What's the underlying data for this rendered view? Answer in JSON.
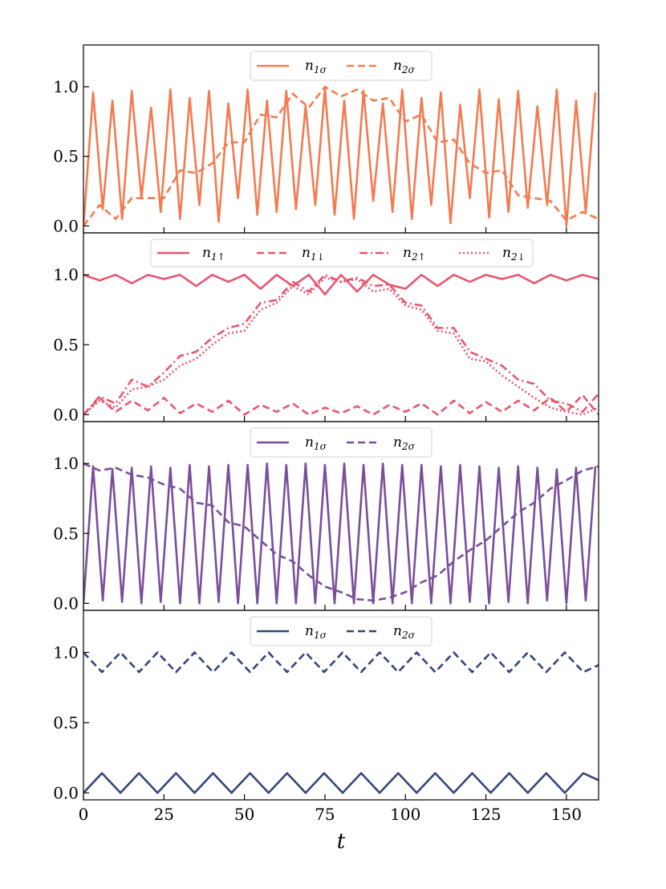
{
  "chart_data": [
    {
      "type": "line",
      "xlabel": "",
      "ylabel": "",
      "xlim": [
        0,
        160
      ],
      "ylim": [
        -0.05,
        1.3
      ],
      "xticks": [
        0,
        25,
        50,
        75,
        100,
        125,
        150
      ],
      "yticks": [
        "0.0",
        "0.5",
        "1.0"
      ],
      "legend_position": "top-center",
      "series": [
        {
          "name": "n1σ",
          "label_base": "n",
          "label_sub": "1σ",
          "color": "#f47a4f",
          "dash": "solid",
          "x": [
            0,
            3,
            6,
            9,
            12,
            15,
            18,
            21,
            24,
            27,
            30,
            33,
            36,
            39,
            42,
            45,
            48,
            51,
            54,
            57,
            60,
            63,
            66,
            69,
            72,
            75,
            78,
            81,
            84,
            87,
            90,
            93,
            96,
            99,
            102,
            105,
            108,
            111,
            114,
            117,
            120,
            123,
            126,
            129,
            132,
            135,
            138,
            141,
            144,
            147,
            150,
            153,
            156,
            159
          ],
          "y": [
            0.0,
            0.96,
            0.12,
            0.9,
            0.05,
            0.97,
            0.2,
            0.85,
            0.1,
            0.98,
            0.05,
            0.92,
            0.15,
            0.97,
            0.03,
            0.88,
            0.2,
            0.98,
            0.08,
            0.9,
            0.1,
            0.97,
            0.12,
            0.86,
            0.15,
            0.99,
            0.08,
            0.9,
            0.05,
            0.97,
            0.18,
            0.88,
            0.1,
            0.98,
            0.05,
            0.92,
            0.15,
            0.96,
            0.02,
            0.87,
            0.2,
            0.98,
            0.06,
            0.91,
            0.1,
            0.97,
            0.13,
            0.86,
            0.15,
            0.98,
            0.0,
            0.9,
            0.1,
            0.96
          ]
        },
        {
          "name": "n2σ",
          "label_base": "n",
          "label_sub": "2σ",
          "color": "#f47a4f",
          "dash": "dashed",
          "x": [
            0,
            5,
            10,
            15,
            20,
            25,
            30,
            35,
            40,
            45,
            50,
            55,
            60,
            65,
            70,
            75,
            80,
            85,
            90,
            95,
            100,
            105,
            110,
            115,
            120,
            125,
            130,
            135,
            140,
            145,
            150,
            155,
            160
          ],
          "y": [
            0.0,
            0.15,
            0.05,
            0.2,
            0.2,
            0.2,
            0.4,
            0.38,
            0.45,
            0.6,
            0.6,
            0.8,
            0.78,
            0.95,
            0.85,
            1.0,
            0.93,
            0.98,
            0.9,
            0.92,
            0.75,
            0.8,
            0.6,
            0.62,
            0.45,
            0.38,
            0.4,
            0.22,
            0.2,
            0.18,
            0.04,
            0.1,
            0.05
          ]
        }
      ]
    },
    {
      "type": "line",
      "xlabel": "",
      "ylabel": "",
      "xlim": [
        0,
        160
      ],
      "ylim": [
        -0.05,
        1.3
      ],
      "xticks": [
        0,
        25,
        50,
        75,
        100,
        125,
        150
      ],
      "yticks": [
        "0.0",
        "0.5",
        "1.0"
      ],
      "legend_position": "top-center",
      "series": [
        {
          "name": "n1↑",
          "label_base": "n",
          "label_sub": "1↑",
          "color": "#e8566f",
          "dash": "solid",
          "x": [
            0,
            5,
            10,
            15,
            20,
            25,
            30,
            35,
            40,
            45,
            50,
            55,
            60,
            65,
            70,
            75,
            80,
            85,
            90,
            95,
            100,
            105,
            110,
            115,
            120,
            125,
            130,
            135,
            140,
            145,
            150,
            155,
            160
          ],
          "y": [
            1.0,
            0.96,
            1.0,
            0.94,
            1.0,
            0.97,
            1.0,
            0.92,
            1.0,
            0.95,
            1.0,
            0.9,
            1.0,
            0.92,
            1.0,
            0.86,
            1.0,
            0.88,
            1.0,
            0.93,
            0.9,
            1.0,
            0.92,
            1.0,
            0.95,
            1.0,
            0.97,
            1.0,
            0.94,
            1.0,
            0.96,
            1.0,
            0.97
          ]
        },
        {
          "name": "n1↓",
          "label_base": "n",
          "label_sub": "1↓",
          "color": "#e8566f",
          "dash": "dashed",
          "x": [
            0,
            5,
            10,
            15,
            20,
            25,
            30,
            35,
            40,
            45,
            50,
            55,
            60,
            65,
            70,
            75,
            80,
            85,
            90,
            95,
            100,
            105,
            110,
            115,
            120,
            125,
            130,
            135,
            140,
            145,
            150,
            155,
            160
          ],
          "y": [
            0.0,
            0.12,
            0.02,
            0.1,
            0.03,
            0.12,
            0.01,
            0.08,
            0.02,
            0.1,
            0.0,
            0.07,
            0.02,
            0.08,
            0.0,
            0.05,
            0.01,
            0.06,
            0.0,
            0.07,
            0.02,
            0.08,
            0.0,
            0.1,
            0.01,
            0.09,
            0.02,
            0.1,
            0.03,
            0.12,
            0.02,
            0.14,
            0.0
          ]
        },
        {
          "name": "n2↑",
          "label_base": "n",
          "label_sub": "2↑",
          "color": "#e8566f",
          "dash": "dashdot",
          "x": [
            0,
            5,
            10,
            15,
            20,
            25,
            30,
            35,
            40,
            45,
            50,
            55,
            60,
            65,
            70,
            75,
            80,
            85,
            90,
            95,
            100,
            105,
            110,
            115,
            120,
            125,
            130,
            135,
            140,
            145,
            150,
            155,
            160
          ],
          "y": [
            0.0,
            0.13,
            0.08,
            0.25,
            0.2,
            0.3,
            0.42,
            0.45,
            0.55,
            0.62,
            0.65,
            0.8,
            0.82,
            0.95,
            0.88,
            1.0,
            0.95,
            0.98,
            0.92,
            0.93,
            0.8,
            0.78,
            0.62,
            0.62,
            0.45,
            0.4,
            0.35,
            0.25,
            0.22,
            0.1,
            0.08,
            0.02,
            0.15
          ]
        },
        {
          "name": "n2↓",
          "label_base": "n",
          "label_sub": "2↓",
          "color": "#e8566f",
          "dash": "dotted",
          "x": [
            0,
            5,
            10,
            15,
            20,
            25,
            30,
            35,
            40,
            45,
            50,
            55,
            60,
            65,
            70,
            75,
            80,
            85,
            90,
            95,
            100,
            105,
            110,
            115,
            120,
            125,
            130,
            135,
            140,
            145,
            150,
            155,
            160
          ],
          "y": [
            0.0,
            0.1,
            0.05,
            0.18,
            0.2,
            0.25,
            0.35,
            0.4,
            0.5,
            0.58,
            0.6,
            0.75,
            0.8,
            0.92,
            0.86,
            0.98,
            0.95,
            0.97,
            0.88,
            0.9,
            0.78,
            0.75,
            0.6,
            0.58,
            0.4,
            0.38,
            0.28,
            0.2,
            0.12,
            0.05,
            0.02,
            0.0,
            0.05
          ]
        }
      ]
    },
    {
      "type": "line",
      "xlabel": "",
      "ylabel": "",
      "xlim": [
        0,
        160
      ],
      "ylim": [
        -0.05,
        1.3
      ],
      "xticks": [
        0,
        25,
        50,
        75,
        100,
        125,
        150
      ],
      "yticks": [
        "0.0",
        "0.5",
        "1.0"
      ],
      "legend_position": "top-center",
      "series": [
        {
          "name": "n1σ",
          "label_base": "n",
          "label_sub": "1σ",
          "color": "#7a4e9b",
          "dash": "solid",
          "x": [
            0,
            3,
            6,
            9,
            12,
            15,
            18,
            21,
            24,
            27,
            30,
            33,
            36,
            39,
            42,
            45,
            48,
            51,
            54,
            57,
            60,
            63,
            66,
            69,
            72,
            75,
            78,
            81,
            84,
            87,
            90,
            93,
            96,
            99,
            102,
            105,
            108,
            111,
            114,
            117,
            120,
            123,
            126,
            129,
            132,
            135,
            138,
            141,
            144,
            147,
            150,
            153,
            156,
            159
          ],
          "y": [
            0.0,
            0.98,
            0.02,
            0.96,
            0.01,
            0.97,
            0.0,
            0.98,
            0.01,
            0.97,
            0.0,
            0.99,
            0.0,
            0.98,
            0.01,
            0.99,
            0.0,
            0.99,
            0.0,
            1.0,
            0.0,
            0.99,
            0.0,
            1.0,
            0.0,
            0.99,
            0.0,
            1.0,
            0.0,
            0.99,
            0.0,
            1.0,
            0.0,
            0.99,
            0.0,
            0.99,
            0.0,
            0.98,
            0.0,
            0.99,
            0.01,
            0.98,
            0.0,
            0.97,
            0.01,
            0.98,
            0.0,
            0.97,
            0.02,
            0.96,
            0.0,
            0.97,
            0.02,
            0.98
          ]
        },
        {
          "name": "n2σ",
          "label_base": "n",
          "label_sub": "2σ",
          "color": "#7a4e9b",
          "dash": "dashed",
          "x": [
            0,
            5,
            10,
            15,
            20,
            25,
            30,
            35,
            40,
            45,
            50,
            55,
            60,
            65,
            70,
            75,
            80,
            85,
            90,
            95,
            100,
            105,
            110,
            115,
            120,
            125,
            130,
            135,
            140,
            145,
            150,
            155,
            160
          ],
          "y": [
            1.0,
            0.95,
            0.97,
            0.92,
            0.9,
            0.85,
            0.82,
            0.72,
            0.7,
            0.58,
            0.55,
            0.45,
            0.35,
            0.3,
            0.2,
            0.12,
            0.08,
            0.03,
            0.02,
            0.04,
            0.08,
            0.15,
            0.2,
            0.3,
            0.38,
            0.45,
            0.55,
            0.65,
            0.72,
            0.82,
            0.88,
            0.95,
            0.98
          ]
        }
      ]
    },
    {
      "type": "line",
      "xlabel": "t",
      "ylabel": "",
      "xlim": [
        0,
        160
      ],
      "ylim": [
        -0.05,
        1.3
      ],
      "xticks": [
        0,
        25,
        50,
        75,
        100,
        125,
        150
      ],
      "yticks": [
        "0.0",
        "0.5",
        "1.0"
      ],
      "legend_position": "top-center",
      "series": [
        {
          "name": "n1σ",
          "label_base": "n",
          "label_sub": "1σ",
          "color": "#34467a",
          "dash": "solid",
          "x": [
            0,
            5.75,
            11.5,
            17.25,
            23,
            28.75,
            34.5,
            40.25,
            46,
            51.75,
            57.5,
            63.25,
            69,
            74.75,
            80.5,
            86.25,
            92,
            97.75,
            103.5,
            109.25,
            115,
            120.75,
            126.5,
            132.25,
            138,
            143.75,
            149.5,
            155.25,
            160
          ],
          "y": [
            0.0,
            0.14,
            0.0,
            0.14,
            0.0,
            0.14,
            0.0,
            0.14,
            0.0,
            0.14,
            0.0,
            0.14,
            0.0,
            0.14,
            0.0,
            0.14,
            0.0,
            0.14,
            0.0,
            0.14,
            0.0,
            0.14,
            0.0,
            0.14,
            0.0,
            0.14,
            0.0,
            0.14,
            0.09
          ]
        },
        {
          "name": "n2σ",
          "label_base": "n",
          "label_sub": "2σ",
          "color": "#34467a",
          "dash": "dashed",
          "x": [
            0,
            5.75,
            11.5,
            17.25,
            23,
            28.75,
            34.5,
            40.25,
            46,
            51.75,
            57.5,
            63.25,
            69,
            74.75,
            80.5,
            86.25,
            92,
            97.75,
            103.5,
            109.25,
            115,
            120.75,
            126.5,
            132.25,
            138,
            143.75,
            149.5,
            155.25,
            160
          ],
          "y": [
            1.0,
            0.86,
            1.0,
            0.86,
            1.0,
            0.86,
            1.0,
            0.86,
            1.0,
            0.86,
            1.0,
            0.86,
            1.0,
            0.86,
            1.0,
            0.86,
            1.0,
            0.86,
            1.0,
            0.86,
            1.0,
            0.86,
            1.0,
            0.86,
            1.0,
            0.86,
            1.0,
            0.86,
            0.91
          ]
        }
      ]
    }
  ]
}
